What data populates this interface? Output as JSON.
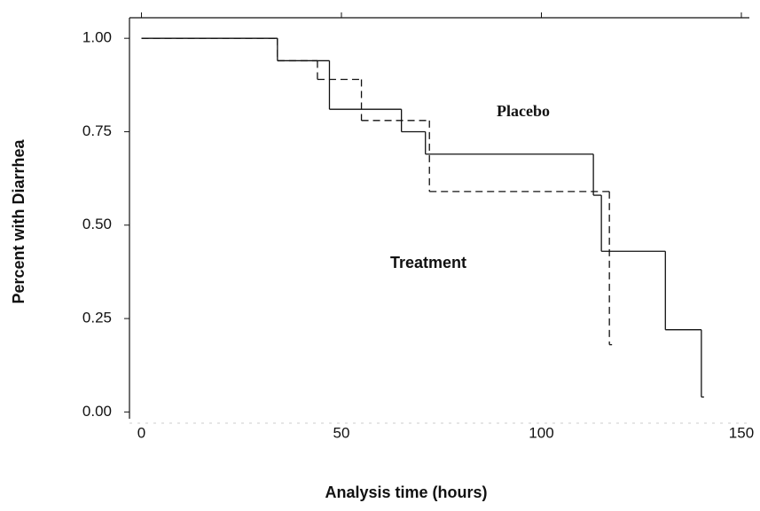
{
  "chart_data": {
    "type": "step",
    "x_label": "Analysis time (hours)",
    "y_label": "Percent with Diarrhea",
    "xlim": [
      -3,
      152
    ],
    "ylim": [
      -0.03,
      1.055
    ],
    "xticks": [
      0,
      50,
      100,
      150
    ],
    "yticks": [
      {
        "value": 0,
        "label": "0.00"
      },
      {
        "value": 0.25,
        "label": "0.25"
      },
      {
        "value": 0.5,
        "label": "0.50"
      },
      {
        "value": 0.75,
        "label": "0.75"
      },
      {
        "value": 1,
        "label": "1.00"
      }
    ],
    "series": [
      {
        "name": "Treatment",
        "color": "#111111",
        "dashed": false,
        "x": [
          0,
          34,
          47,
          65,
          71,
          113,
          115,
          131,
          140
        ],
        "values": [
          1,
          0.94,
          0.81,
          0.75,
          0.69,
          0.58,
          0.43,
          0.22,
          0.04
        ]
      },
      {
        "name": "Placebo",
        "color": "#111111",
        "dashed": true,
        "x": [
          0,
          34,
          44,
          55,
          72,
          117
        ],
        "values": [
          1,
          0.94,
          0.89,
          0.78,
          0.59,
          0.18
        ]
      }
    ]
  }
}
